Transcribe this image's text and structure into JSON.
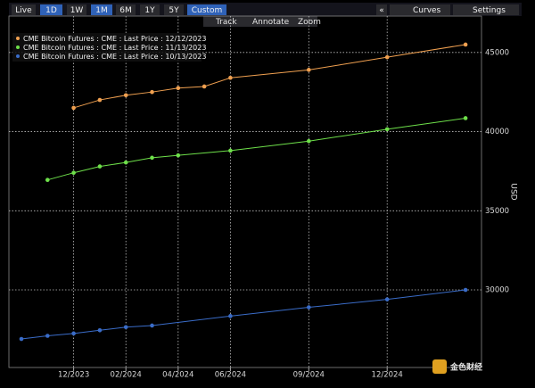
{
  "toolbar": {
    "buttons": [
      "Live",
      "1D",
      "1W",
      "1M",
      "6M",
      "1Y",
      "5Y",
      "Custom"
    ],
    "collapse": "«",
    "curves": "Curves",
    "settings": "Settings",
    "tools": [
      "Track",
      "Annotate",
      "Zoom"
    ]
  },
  "watermark": "金色财经",
  "chart_data": {
    "type": "line",
    "y_label": "USD",
    "grid": true,
    "legend": "top-left",
    "xlim": [
      "09/2023",
      "04/2025"
    ],
    "xticks": [
      "12/2023",
      "02/2024",
      "04/2024",
      "06/2024",
      "09/2024",
      "12/2024"
    ],
    "ylim": [
      25100,
      47300
    ],
    "yticks": [
      30000,
      35000,
      40000,
      45000
    ],
    "series": [
      {
        "name": "CME Bitcoin Futures : CME : Last Price : 12/12/2023",
        "color": "#f0a050",
        "x": [
          "12/2023",
          "01/2024",
          "02/2024",
          "03/2024",
          "04/2024",
          "05/2024",
          "06/2024",
          "09/2024",
          "12/2024",
          "03/2025"
        ],
        "values": [
          41500,
          42000,
          42300,
          42500,
          42750,
          42850,
          43400,
          43900,
          44700,
          45500
        ]
      },
      {
        "name": "CME Bitcoin Futures : CME : Last Price : 11/13/2023",
        "color": "#6ee04a",
        "x": [
          "11/2023",
          "12/2023",
          "01/2024",
          "02/2024",
          "03/2024",
          "04/2024",
          "06/2024",
          "09/2024",
          "12/2024",
          "03/2025"
        ],
        "values": [
          36950,
          37400,
          37800,
          38050,
          38350,
          38500,
          38800,
          39400,
          40150,
          40850
        ]
      },
      {
        "name": "CME Bitcoin Futures : CME : Last Price : 10/13/2023",
        "color": "#3a6cc8",
        "x": [
          "10/2023",
          "11/2023",
          "12/2023",
          "01/2024",
          "02/2024",
          "03/2024",
          "06/2024",
          "09/2024",
          "12/2024",
          "03/2025"
        ],
        "values": [
          26900,
          27100,
          27250,
          27450,
          27650,
          27750,
          28350,
          28900,
          29400,
          30000
        ]
      }
    ]
  }
}
